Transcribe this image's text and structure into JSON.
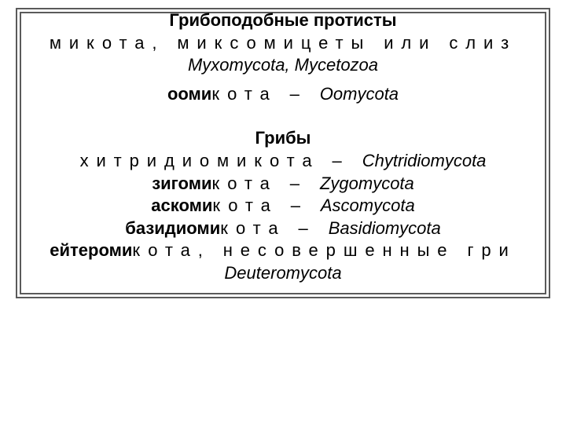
{
  "font": {
    "family": "Arial",
    "size_pt": 22,
    "title_size_pt": 22,
    "color": "#000000"
  },
  "frame": {
    "border_color": "#5a5a5a",
    "double": true
  },
  "background_color": "#ffffff",
  "section1": {
    "title": "Грибоподобные протисты",
    "line1_plain": "микота, миксомицеты или слиз",
    "line1_italic": "Myxomycota,  Mycetozoa",
    "line2_bold": "ооми",
    "line2_plain": "кота – ",
    "line2_italic": "Oomycota"
  },
  "section2": {
    "title": "Грибы",
    "rows": [
      {
        "plain": "хитридиомикота – ",
        "italic": "Chytridiomycota"
      },
      {
        "bold": "зигоми",
        "plain": "кота – ",
        "italic": "Zygomycota"
      },
      {
        "bold": "аскоми",
        "plain": "кота – ",
        "italic": "Ascomycota"
      },
      {
        "bold": "базидиоми",
        "plain": "кота – ",
        "italic": "Basidiomycota"
      },
      {
        "bold": "ейтероми",
        "plain": "кота, несовершенные гри",
        "italic": ""
      },
      {
        "italic": "Deuteromycota"
      }
    ]
  }
}
